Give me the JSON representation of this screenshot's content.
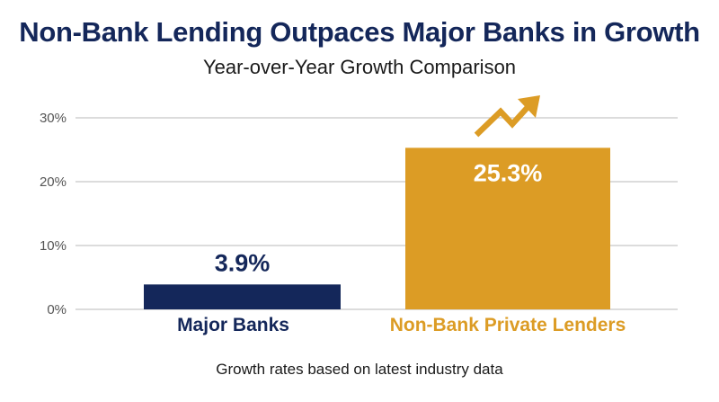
{
  "chart_data": {
    "type": "bar",
    "title": "Non-Bank Lending Outpaces Major Banks in Growth",
    "subtitle": "Year-over-Year Growth Comparison",
    "footnote": "Growth rates based on latest industry data",
    "categories": [
      "Major Banks",
      "Non-Bank Private Lenders"
    ],
    "values": [
      3.9,
      25.3
    ],
    "data_labels": [
      "3.9%",
      "25.3%"
    ],
    "colors": [
      "#14275a",
      "#dc9c25"
    ],
    "category_label_colors": [
      "#14275a",
      "#dc9c25"
    ],
    "data_label_colors": [
      "#14275a",
      "#ffffff"
    ],
    "ylim": [
      0,
      30
    ],
    "yticks": [
      0,
      10,
      20,
      30
    ],
    "ytick_labels": [
      "0%",
      "10%",
      "20%",
      "30%"
    ],
    "xlabel": "",
    "ylabel": "",
    "grid": true,
    "legend": "none",
    "annotations": [
      {
        "type": "icon",
        "name": "trending-up-arrow-icon",
        "color": "#dc9c25"
      }
    ]
  }
}
